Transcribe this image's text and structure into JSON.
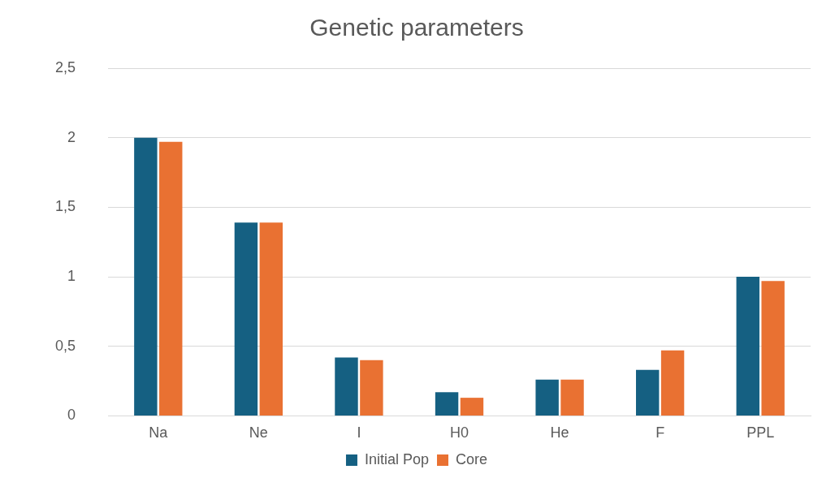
{
  "chart_data": {
    "type": "bar",
    "title": "Genetic parameters",
    "categories": [
      "Na",
      "Ne",
      "I",
      "H0",
      "He",
      "F",
      "PPL"
    ],
    "series": [
      {
        "name": "Initial Pop",
        "color": "#156082",
        "values": [
          2.0,
          1.39,
          0.42,
          0.17,
          0.26,
          0.33,
          1.0
        ]
      },
      {
        "name": "Core",
        "color": "#e97132",
        "values": [
          1.97,
          1.39,
          0.4,
          0.13,
          0.26,
          0.47,
          0.97
        ]
      }
    ],
    "ylim": [
      0,
      2.5
    ],
    "yticks": [
      0,
      {
        "value": 0.5,
        "label": "0,5"
      },
      1,
      {
        "value": 1.5,
        "label": "1,5"
      },
      2,
      {
        "value": 2.5,
        "label": "2,5"
      }
    ],
    "grid": "y",
    "legend": "bottom"
  }
}
